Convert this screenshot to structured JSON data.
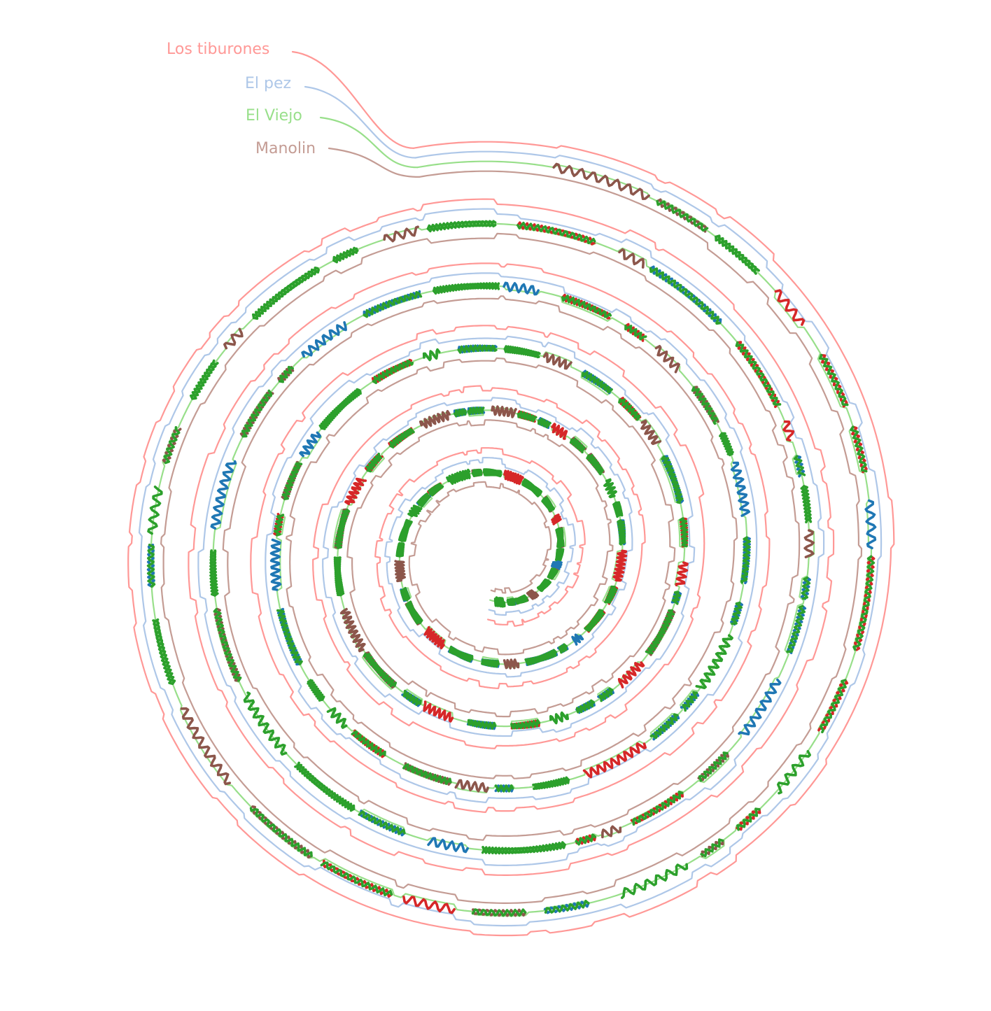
{
  "diagram": {
    "type": "spiral-storyline",
    "characters": [
      {
        "name": "Los tiburones",
        "color": "#ff9896"
      },
      {
        "name": "El pez",
        "color": "#aec7e8"
      },
      {
        "name": "El Viejo",
        "color": "#98df8a"
      },
      {
        "name": "Manolin",
        "color": "#c49c94"
      }
    ],
    "interaction_colors": {
      "Los tiburones": "#d62728",
      "El pez": "#1f77b4",
      "El Viejo": "#2ca02c",
      "Manolin": "#8c564b"
    }
  }
}
